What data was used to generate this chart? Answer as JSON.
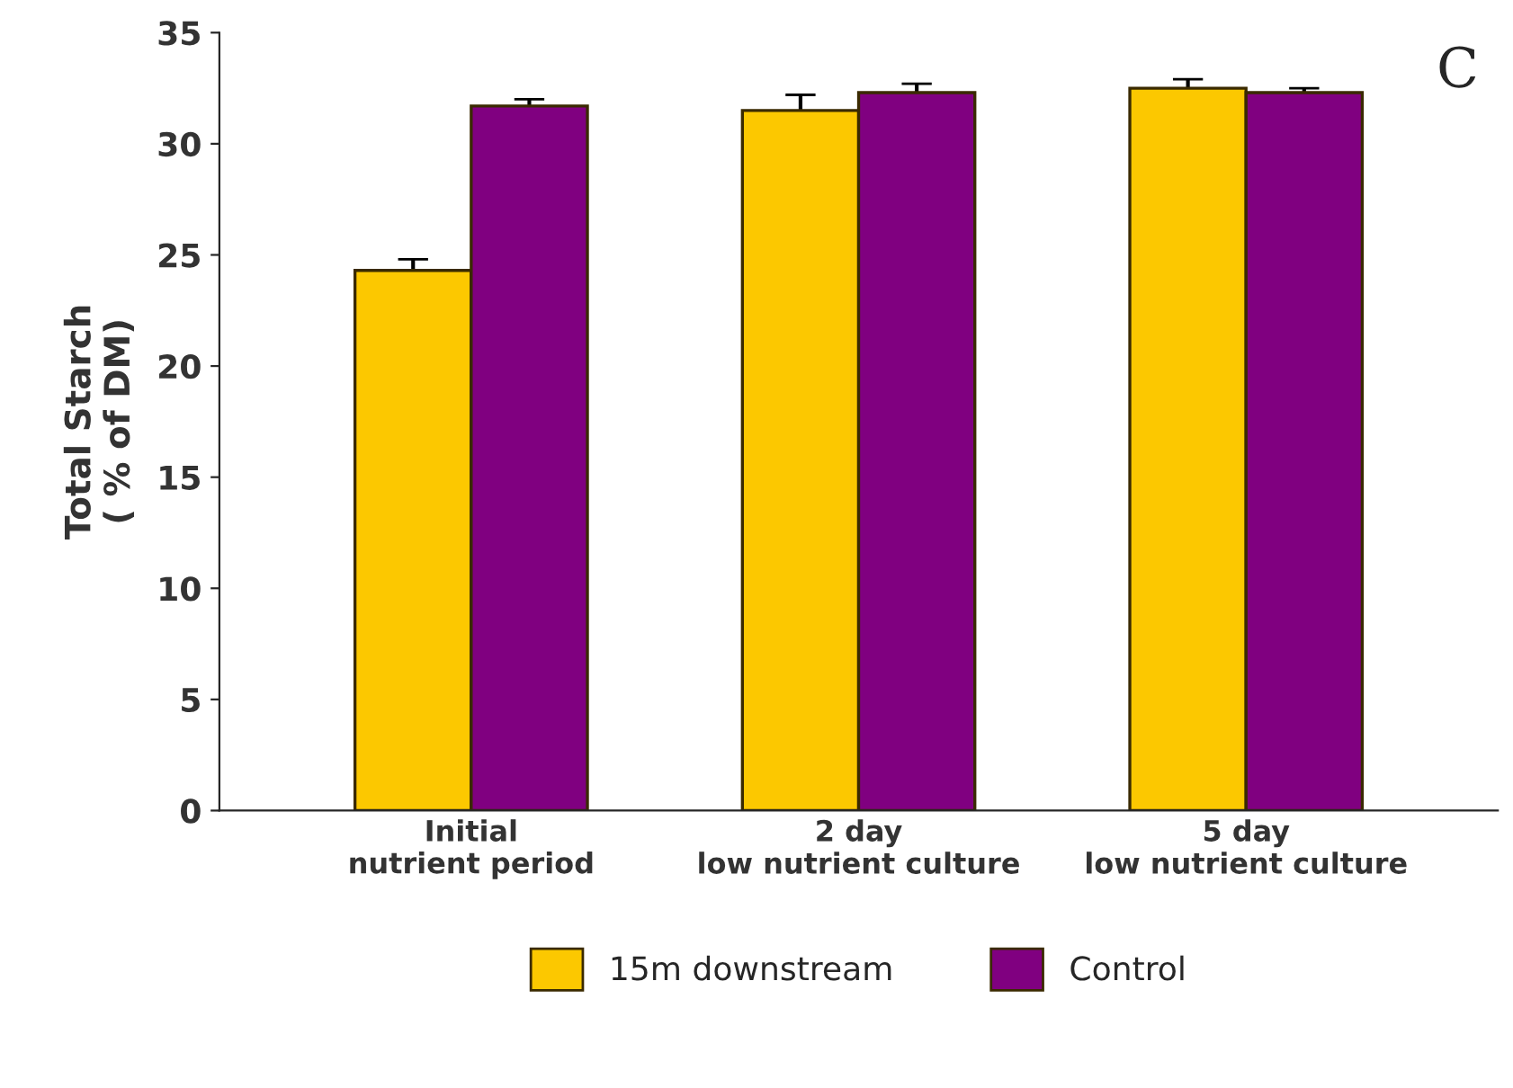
{
  "chart_data": {
    "type": "bar",
    "ylabel": "Total Starch\n( % of DM)",
    "categories": [
      "Initial\nnutrient period",
      "2 day\nlow nutrient culture",
      "5 day\nlow nutrient culture"
    ],
    "series": [
      {
        "name": "15m downstream",
        "color": "#fcc800",
        "values": [
          24.3,
          31.5,
          32.5
        ],
        "errors": [
          0.5,
          0.7,
          0.4
        ]
      },
      {
        "name": "Control",
        "color": "#800080",
        "values": [
          31.7,
          32.3,
          32.3
        ],
        "errors": [
          0.3,
          0.4,
          0.2
        ]
      }
    ],
    "ylim": [
      0,
      35
    ],
    "yticks": [
      0,
      5,
      10,
      15,
      20,
      25,
      30,
      35
    ],
    "grid": false,
    "legend": "bottom",
    "annotations": [
      "C"
    ]
  }
}
